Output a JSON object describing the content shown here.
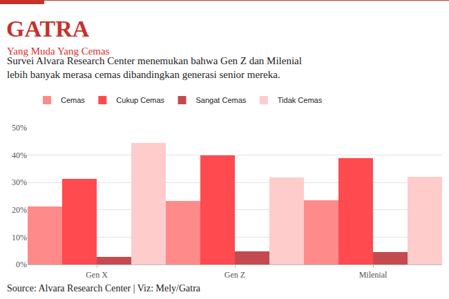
{
  "chart_data": {
    "type": "bar",
    "title": "GATRA",
    "subtitle": "Yang Muda Yang Cemas",
    "description": [
      "Survei Alvara Research Center menemukan bahwa Gen Z dan Milenial",
      "lebih banyak merasa cemas dibandingkan generasi senior mereka."
    ],
    "source": "Source: Alvara Research Center | Viz: Mely/Gatra",
    "categories": [
      "Gen X",
      "Gen Z",
      "Milenial"
    ],
    "series": [
      {
        "name": "Cemas",
        "color": "#ff8a8a",
        "values": [
          21.2,
          23.2,
          23.4
        ]
      },
      {
        "name": "Cukup Cemas",
        "color": "#ff4a4f",
        "values": [
          31.4,
          40.0,
          38.8
        ]
      },
      {
        "name": "Sangat Cemas",
        "color": "#c44a4f",
        "values": [
          2.7,
          4.9,
          4.6
        ]
      },
      {
        "name": "Tidak Cemas",
        "color": "#ffcccc",
        "values": [
          44.4,
          31.7,
          32.1
        ]
      }
    ],
    "ylim": [
      0,
      50
    ],
    "yticks": [
      {
        "value": 0,
        "label": "0%"
      },
      {
        "value": 10,
        "label": "10%"
      },
      {
        "value": 20,
        "label": "20%"
      },
      {
        "value": 30,
        "label": "30%"
      },
      {
        "value": 40,
        "label": "40%"
      },
      {
        "value": 50,
        "label": "50%"
      }
    ],
    "grid": true,
    "legend": "top-left"
  }
}
